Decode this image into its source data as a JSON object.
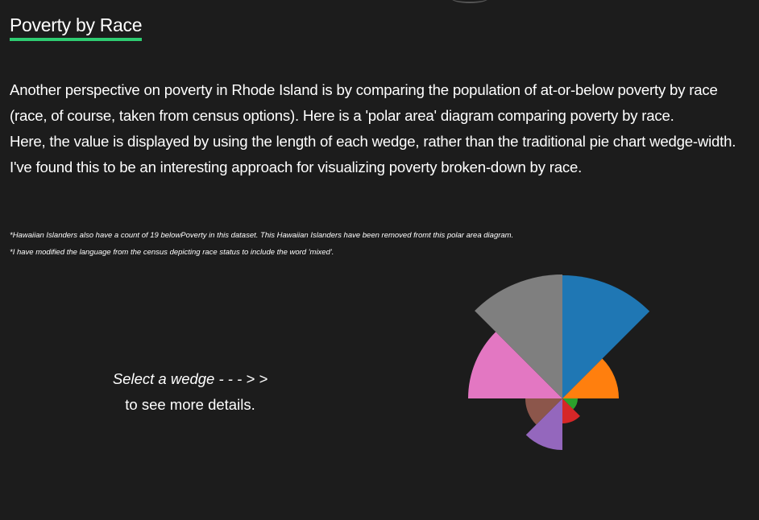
{
  "header": {
    "title": "Poverty by Race"
  },
  "intro": {
    "line1": "Another perspective on poverty in Rhode Island is by comparing the population of at-or-below poverty by race (race, of course, taken from census options). Here is a 'polar area' diagram comparing poverty by race.",
    "line2": "Here, the value is displayed by using the length of each wedge, rather than the traditional pie chart wedge-width. I've found this to be an interesting approach for visualizing poverty broken-down by race."
  },
  "notes": {
    "note1": "*Hawaiian Islanders also have a count of 19 belowPoverty in this dataset. This Hawaiian Islanders have been removed fromt this polar area diagram.",
    "note2": "*I have modified the language from the census depicting race status to include the word 'mixed'."
  },
  "prompt": {
    "line1": "Select a wedge - - - > >",
    "line2": "to see more details."
  },
  "chart_data": {
    "type": "polar-area",
    "title": "",
    "wedge_count": 8,
    "values": [
      153,
      70,
      19,
      31,
      64,
      46,
      117,
      154
    ],
    "colors": [
      "#1f77b4",
      "#ff7f0e",
      "#2ca02c",
      "#d62728",
      "#9467bd",
      "#8c564b",
      "#e377c2",
      "#7f7f7f"
    ]
  }
}
